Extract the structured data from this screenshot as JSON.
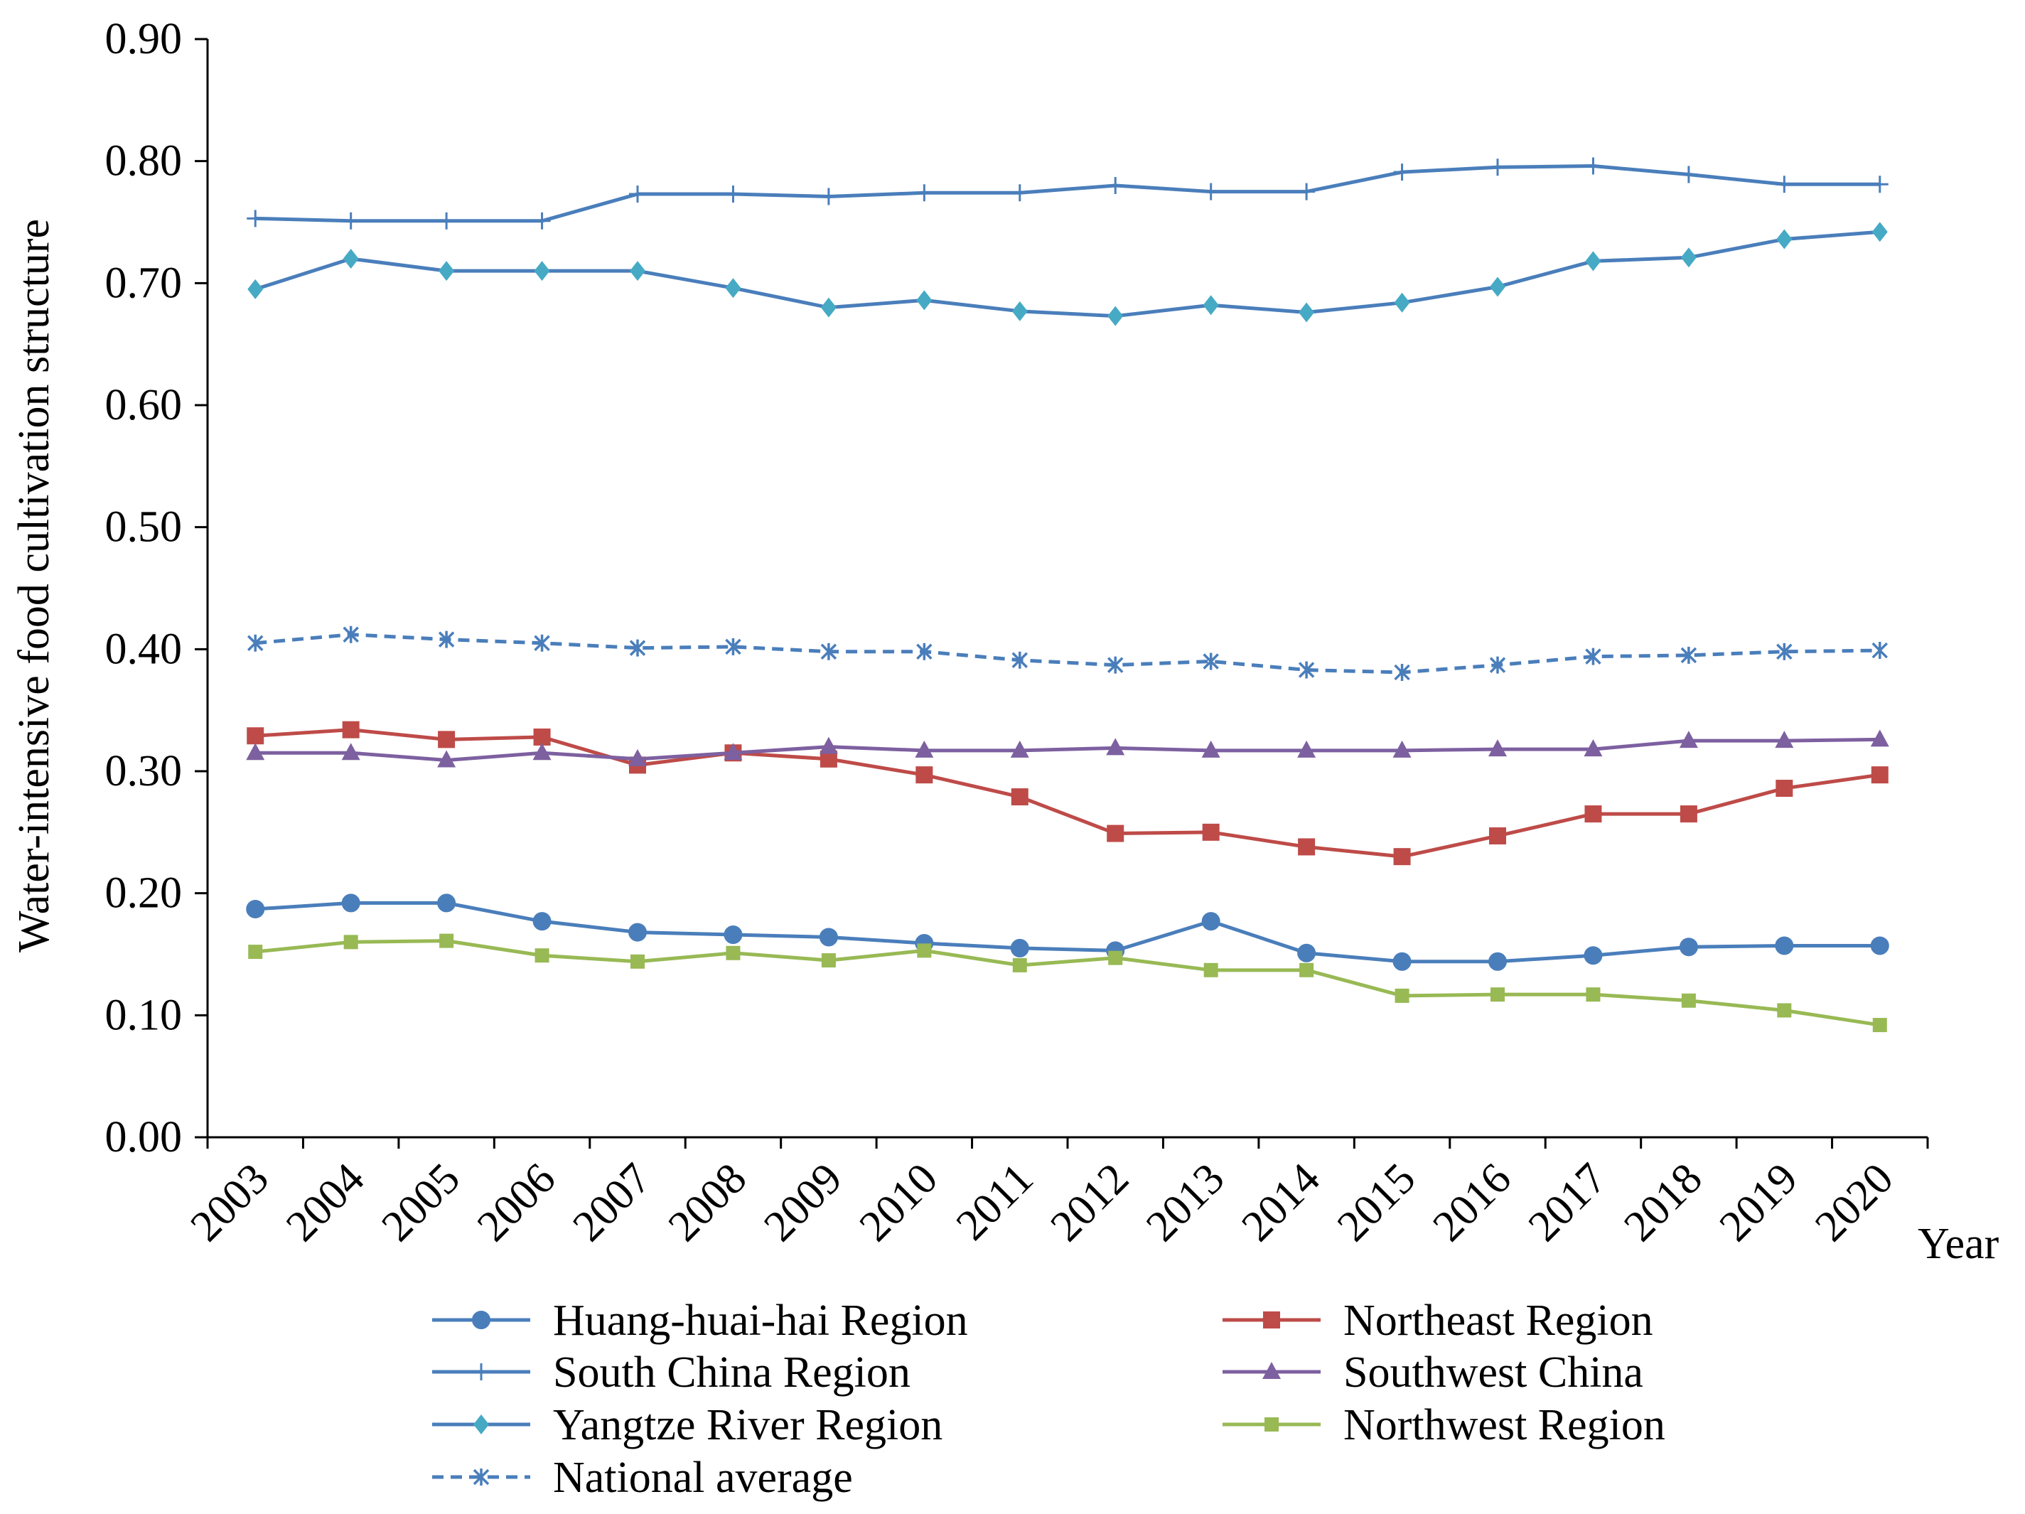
{
  "chart_data": {
    "type": "line",
    "title": "",
    "xlabel": "Year",
    "ylabel": "Water-intensive food cultivation structure",
    "categories": [
      "2003",
      "2004",
      "2005",
      "2006",
      "2007",
      "2008",
      "2009",
      "2010",
      "2011",
      "2012",
      "2013",
      "2014",
      "2015",
      "2016",
      "2017",
      "2018",
      "2019",
      "2020"
    ],
    "yticks": [
      "0.00",
      "0.10",
      "0.20",
      "0.30",
      "0.40",
      "0.50",
      "0.60",
      "0.70",
      "0.80",
      "0.90"
    ],
    "ylim": [
      0,
      0.9
    ],
    "grid": false,
    "legend_position": "bottom",
    "series": [
      {
        "name": "Huang-huai-hai Region",
        "color": "#4a7ebb",
        "marker": "circle",
        "dash": false,
        "values": [
          0.187,
          0.192,
          0.192,
          0.177,
          0.168,
          0.166,
          0.164,
          0.159,
          0.155,
          0.153,
          0.177,
          0.151,
          0.144,
          0.144,
          0.149,
          0.156,
          0.157,
          0.157
        ]
      },
      {
        "name": "Northeast Region",
        "color": "#be4b48",
        "marker": "square",
        "dash": false,
        "values": [
          0.329,
          0.334,
          0.326,
          0.328,
          0.305,
          0.315,
          0.31,
          0.297,
          0.279,
          0.249,
          0.25,
          0.238,
          0.23,
          0.247,
          0.265,
          0.265,
          0.286,
          0.297
        ]
      },
      {
        "name": "South China Region",
        "color": "#4a7ebb",
        "marker": "plus",
        "dash": false,
        "values": [
          0.753,
          0.751,
          0.751,
          0.751,
          0.773,
          0.773,
          0.771,
          0.774,
          0.774,
          0.78,
          0.775,
          0.775,
          0.791,
          0.795,
          0.796,
          0.789,
          0.781,
          0.781
        ]
      },
      {
        "name": "Southwest China",
        "color": "#7d60a0",
        "marker": "triangle",
        "dash": false,
        "values": [
          0.315,
          0.315,
          0.309,
          0.315,
          0.31,
          0.315,
          0.32,
          0.317,
          0.317,
          0.319,
          0.317,
          0.317,
          0.317,
          0.318,
          0.318,
          0.325,
          0.325,
          0.326
        ]
      },
      {
        "name": "Yangtze River Region",
        "color": "#4a7ebb",
        "marker": "diamond",
        "marker_color": "#46aac5",
        "dash": false,
        "values": [
          0.695,
          0.72,
          0.71,
          0.71,
          0.71,
          0.696,
          0.68,
          0.686,
          0.677,
          0.673,
          0.682,
          0.676,
          0.684,
          0.697,
          0.718,
          0.721,
          0.736,
          0.742
        ]
      },
      {
        "name": "Northwest Region",
        "color": "#98b954",
        "marker": "smallsquare",
        "dash": false,
        "values": [
          0.152,
          0.16,
          0.161,
          0.149,
          0.144,
          0.151,
          0.145,
          0.153,
          0.141,
          0.147,
          0.137,
          0.137,
          0.116,
          0.117,
          0.117,
          0.112,
          0.104,
          0.092
        ]
      },
      {
        "name": "National average",
        "color": "#4a7ebb",
        "marker": "asterisk",
        "dash": true,
        "values": [
          0.405,
          0.412,
          0.408,
          0.405,
          0.401,
          0.402,
          0.398,
          0.398,
          0.391,
          0.387,
          0.39,
          0.383,
          0.381,
          0.387,
          0.394,
          0.395,
          0.398,
          0.399
        ]
      }
    ]
  }
}
